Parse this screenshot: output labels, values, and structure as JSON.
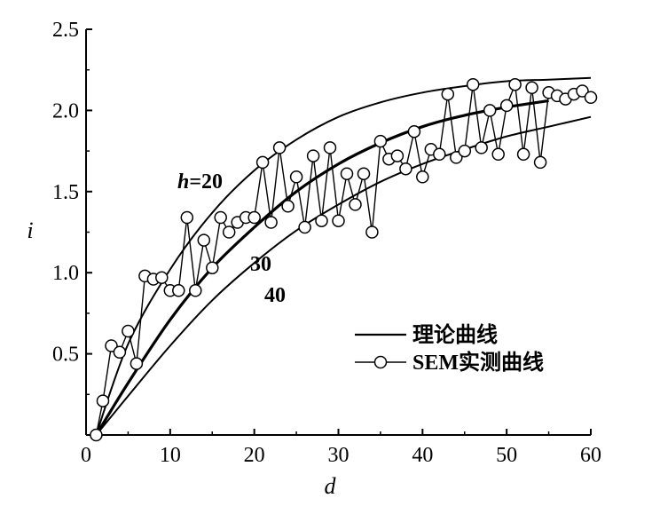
{
  "chart_data": {
    "type": "line",
    "xlabel": "d",
    "ylabel": "i",
    "xlim": [
      0,
      60
    ],
    "ylim": [
      0,
      2.5
    ],
    "xticks": [
      0,
      10,
      20,
      30,
      40,
      50,
      60
    ],
    "yticks": [
      0.5,
      1.0,
      1.5,
      2.0,
      2.5
    ],
    "xtick_labels": [
      "0",
      "10",
      "20",
      "30",
      "40",
      "50",
      "60"
    ],
    "ytick_labels": [
      "0.5",
      "1.0",
      "1.5",
      "2.0",
      "2.5"
    ],
    "grid": false,
    "legend_position": "bottom-right",
    "legend": [
      {
        "label": "理论曲线",
        "style": "line"
      },
      {
        "label": "SEM实测曲线",
        "style": "line-circle"
      }
    ],
    "annotations": {
      "h20": {
        "prefix": "h",
        "suffix": "=20"
      },
      "h30": "30",
      "h40": "40"
    },
    "series": [
      {
        "key": "theory_h20",
        "x": [
          1.2,
          5,
          10,
          15,
          20,
          25,
          30,
          35,
          40,
          45,
          50,
          55,
          60
        ],
        "y": [
          0.0,
          0.56,
          1.02,
          1.37,
          1.63,
          1.82,
          1.96,
          2.05,
          2.11,
          2.15,
          2.18,
          2.19,
          2.2
        ]
      },
      {
        "key": "theory_h30",
        "x": [
          1.2,
          5,
          10,
          15,
          20,
          25,
          30,
          35,
          40,
          45,
          50,
          55
        ],
        "y": [
          0.0,
          0.32,
          0.71,
          1.03,
          1.28,
          1.5,
          1.67,
          1.8,
          1.9,
          1.97,
          2.02,
          2.06
        ]
      },
      {
        "key": "theory_h40",
        "x": [
          1.2,
          5,
          10,
          15,
          20,
          25,
          30,
          35,
          40,
          45,
          50,
          55,
          60
        ],
        "y": [
          0.0,
          0.24,
          0.55,
          0.83,
          1.06,
          1.26,
          1.42,
          1.56,
          1.67,
          1.76,
          1.84,
          1.9,
          1.96
        ]
      },
      {
        "key": "sem_measured",
        "x": [
          1.2,
          2,
          3,
          4,
          5,
          6,
          7,
          8,
          9,
          10,
          11,
          12,
          13,
          14,
          15,
          16,
          17,
          18,
          19,
          20,
          21,
          22,
          23,
          24,
          25,
          26,
          27,
          28,
          29,
          30,
          31,
          32,
          33,
          34,
          35,
          36,
          37,
          38,
          39,
          40,
          41,
          42,
          43,
          44,
          45,
          46,
          47,
          48,
          49,
          50,
          51,
          52,
          53,
          54,
          55,
          56,
          57,
          58,
          59,
          60
        ],
        "y": [
          0.0,
          0.21,
          0.55,
          0.51,
          0.64,
          0.44,
          0.98,
          0.96,
          0.97,
          0.89,
          0.89,
          1.34,
          0.89,
          1.2,
          1.03,
          1.34,
          1.25,
          1.31,
          1.34,
          1.34,
          1.68,
          1.31,
          1.77,
          1.41,
          1.59,
          1.28,
          1.72,
          1.32,
          1.77,
          1.32,
          1.61,
          1.42,
          1.61,
          1.25,
          1.81,
          1.7,
          1.72,
          1.64,
          1.87,
          1.59,
          1.76,
          1.73,
          2.1,
          1.71,
          1.75,
          2.16,
          1.77,
          2.0,
          1.73,
          2.03,
          2.16,
          1.73,
          2.14,
          1.68,
          2.11,
          2.09,
          2.07,
          2.1,
          2.12,
          2.08
        ]
      }
    ]
  }
}
